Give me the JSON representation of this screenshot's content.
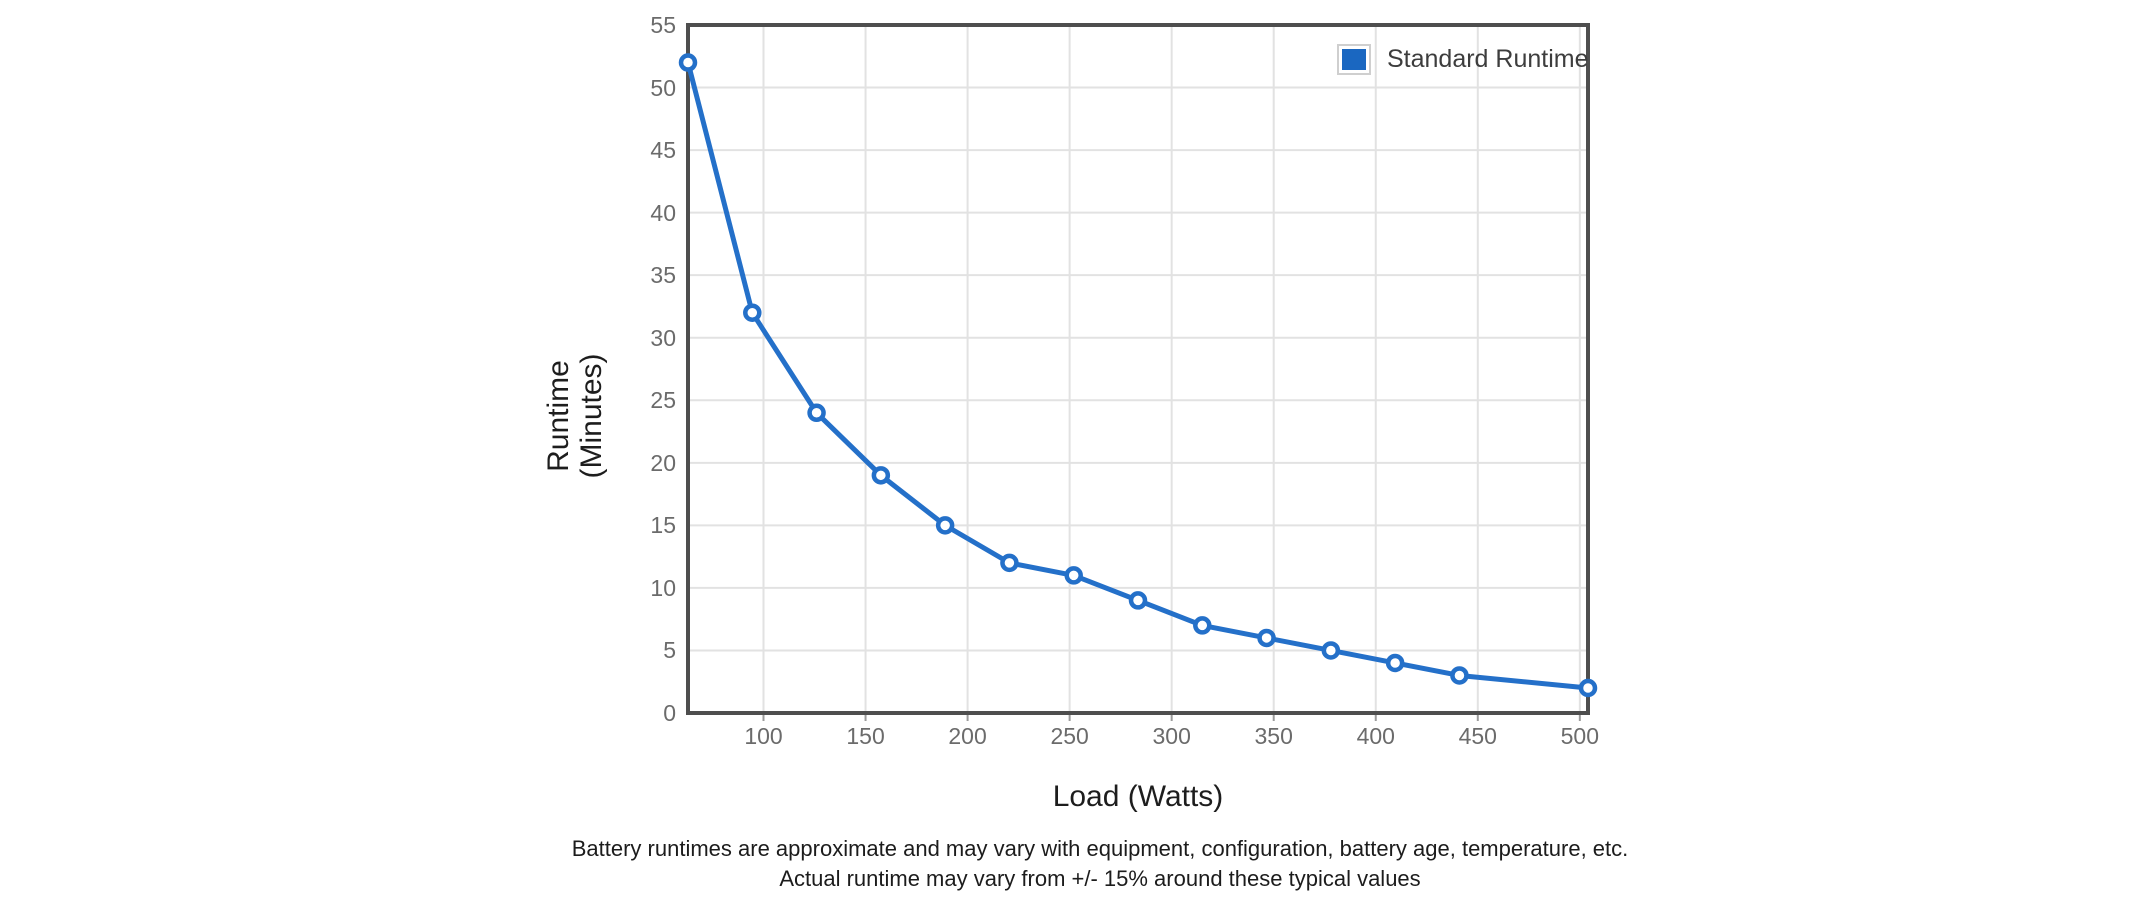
{
  "chart": {
    "legend": {
      "label": "Standard Runtime"
    },
    "x_axis": {
      "title": "Load (Watts)",
      "ticks": [
        100,
        150,
        200,
        250,
        300,
        350,
        400,
        450,
        500
      ],
      "min": 63,
      "max": 504
    },
    "y_axis": {
      "title_line1": "Runtime",
      "title_line2": "(Minutes)",
      "ticks": [
        0,
        5,
        10,
        15,
        20,
        25,
        30,
        35,
        40,
        45,
        50,
        55
      ],
      "min": 0,
      "max": 55
    },
    "colors": {
      "line": "#2470c9",
      "marker_fill": "#ffffff",
      "legend_swatch": "#1a67c1",
      "grid": "#e2e2e2",
      "tick_stub": "#9b9b9b",
      "plot_border": "#4e4e4e",
      "tick_text": "#6b6b6b",
      "axis_title_text": "#1d1d1d",
      "legend_text": "#3d3d3d",
      "footer_text": "#1c1c1c"
    }
  },
  "chart_data": {
    "type": "line",
    "title": "",
    "xlabel": "Load (Watts)",
    "ylabel": "Runtime (Minutes)",
    "x": [
      63,
      94.5,
      126,
      157.5,
      189,
      220.5,
      252,
      283.5,
      315,
      346.5,
      378,
      409.5,
      441,
      504
    ],
    "series": [
      {
        "name": "Standard Runtime",
        "values": [
          52,
          32,
          24,
          19,
          15,
          12,
          11,
          9,
          7,
          6,
          5,
          4,
          3,
          2
        ]
      }
    ],
    "xlim": [
      63,
      504
    ],
    "ylim": [
      0,
      55
    ],
    "x_ticks": [
      100,
      150,
      200,
      250,
      300,
      350,
      400,
      450,
      500
    ],
    "y_ticks": [
      0,
      5,
      10,
      15,
      20,
      25,
      30,
      35,
      40,
      45,
      50,
      55
    ],
    "grid": true,
    "legend_position": "top-right"
  },
  "footer": {
    "line1": "Battery runtimes are approximate and may vary with equipment, configuration, battery age, temperature, etc.",
    "line2": "Actual runtime may vary from +/- 15% around these typical values"
  }
}
